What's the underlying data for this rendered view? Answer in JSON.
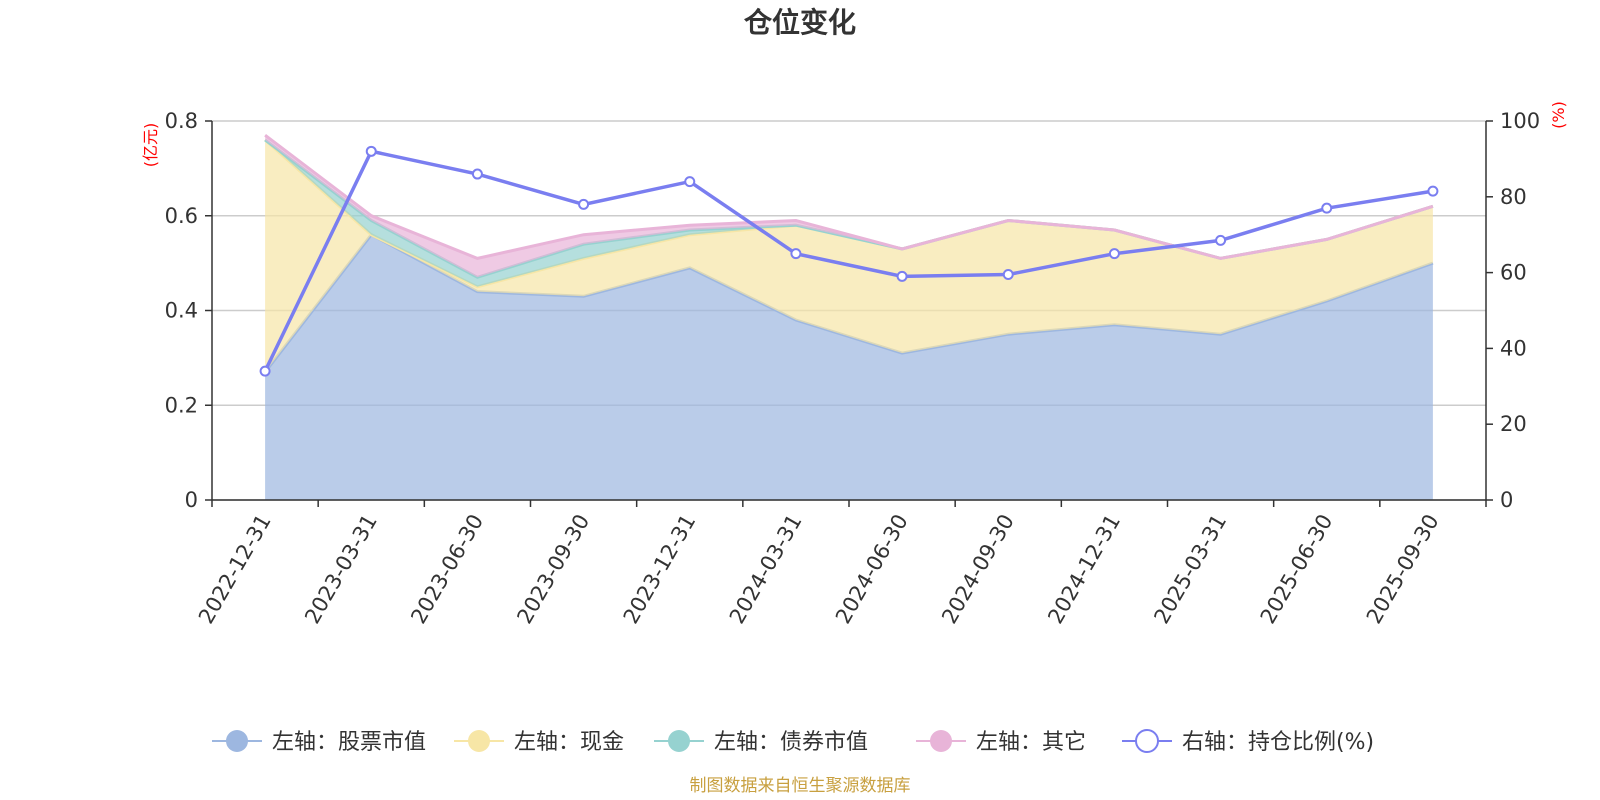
{
  "chart_data": {
    "type": "area",
    "title": "仓位变化",
    "source": "制图数据来自恒生聚源数据库",
    "left_axis": {
      "unit": "(亿元)",
      "range": [
        0,
        0.8
      ],
      "ticks": [
        "0",
        "0.2",
        "0.4",
        "0.6",
        "0.8"
      ]
    },
    "right_axis": {
      "unit": "(%)",
      "range": [
        0,
        100
      ],
      "ticks": [
        "0",
        "20",
        "40",
        "60",
        "80",
        "100"
      ]
    },
    "categories": [
      "2022-12-31",
      "2023-03-31",
      "2023-06-30",
      "2023-09-30",
      "2023-12-31",
      "2024-03-31",
      "2024-06-30",
      "2024-09-30",
      "2024-12-31",
      "2025-03-31",
      "2025-06-30",
      "2025-09-30"
    ],
    "stacked_series": [
      {
        "name": "左轴：股票市值",
        "color": "#9db7e0",
        "values": [
          0.27,
          0.56,
          0.44,
          0.43,
          0.49,
          0.38,
          0.31,
          0.35,
          0.37,
          0.35,
          0.42,
          0.5
        ]
      },
      {
        "name": "左轴：现金",
        "color": "#f7e6a6",
        "values": [
          0.49,
          0.0,
          0.01,
          0.08,
          0.07,
          0.2,
          0.22,
          0.24,
          0.2,
          0.16,
          0.13,
          0.12
        ]
      },
      {
        "name": "左轴：债券市值",
        "color": "#96d2d0",
        "values": [
          0.0,
          0.03,
          0.02,
          0.03,
          0.01,
          0.0,
          0.0,
          0.0,
          0.0,
          0.0,
          0.0,
          0.0
        ]
      },
      {
        "name": "左轴：其它",
        "color": "#e8b4d8",
        "values": [
          0.01,
          0.01,
          0.04,
          0.02,
          0.01,
          0.01,
          0.0,
          0.0,
          0.0,
          0.0,
          0.0,
          0.0
        ]
      }
    ],
    "line_series": {
      "name": "右轴：持仓比例(%)",
      "color": "#7a7ef0",
      "axis": "right",
      "values": [
        34,
        92,
        86,
        78,
        84,
        65,
        59,
        59.5,
        65,
        68.5,
        77,
        81.5
      ]
    }
  }
}
